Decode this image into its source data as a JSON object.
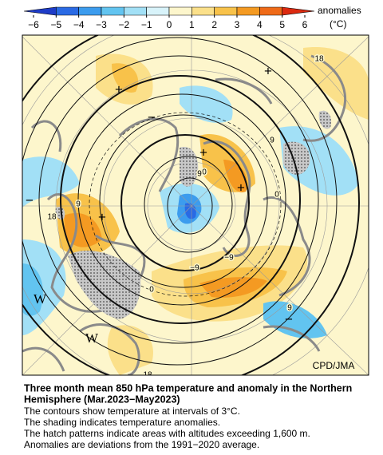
{
  "colorbar": {
    "ticks": [
      {
        "value": -6,
        "label": "−6"
      },
      {
        "value": -5,
        "label": "−5"
      },
      {
        "value": -4,
        "label": "−4"
      },
      {
        "value": -3,
        "label": "−3"
      },
      {
        "value": -2,
        "label": "−2"
      },
      {
        "value": -1,
        "label": "−1"
      },
      0,
      1,
      2,
      3,
      4,
      5,
      6
    ],
    "colors": [
      "#1e3cc8",
      "#2a6ae4",
      "#3c9cee",
      "#62c4f0",
      "#a2e0f6",
      "#d8f3fa",
      "#fdf6cc",
      "#fbe08a",
      "#f8c24a",
      "#f49a22",
      "#ef6a18",
      "#dc2a10"
    ],
    "label": "anomalies",
    "unit": "(°C)"
  },
  "map": {
    "labels": [
      "18",
      "9",
      "0",
      "−9",
      "9",
      "0",
      "9",
      "18",
      "18",
      "0",
      "−9",
      "9",
      "W",
      "W",
      "+",
      "+",
      "+",
      "+",
      "+",
      "−",
      "−",
      "−"
    ],
    "credit": "CPD/JMA"
  },
  "caption": {
    "title": [
      "Three month mean 850 hPa temperature and anomaly in the Northern",
      "Hemisphere (Mar.2023−May2023)"
    ],
    "notes": [
      "The contours show temperature at intervals of 3°C.",
      "The shading indicates temperature anomalies.",
      "The hatch patterns indicate areas with altitudes exceeding 1,600 m.",
      "Anomalies are deviations from the 1991−2020 average."
    ]
  }
}
